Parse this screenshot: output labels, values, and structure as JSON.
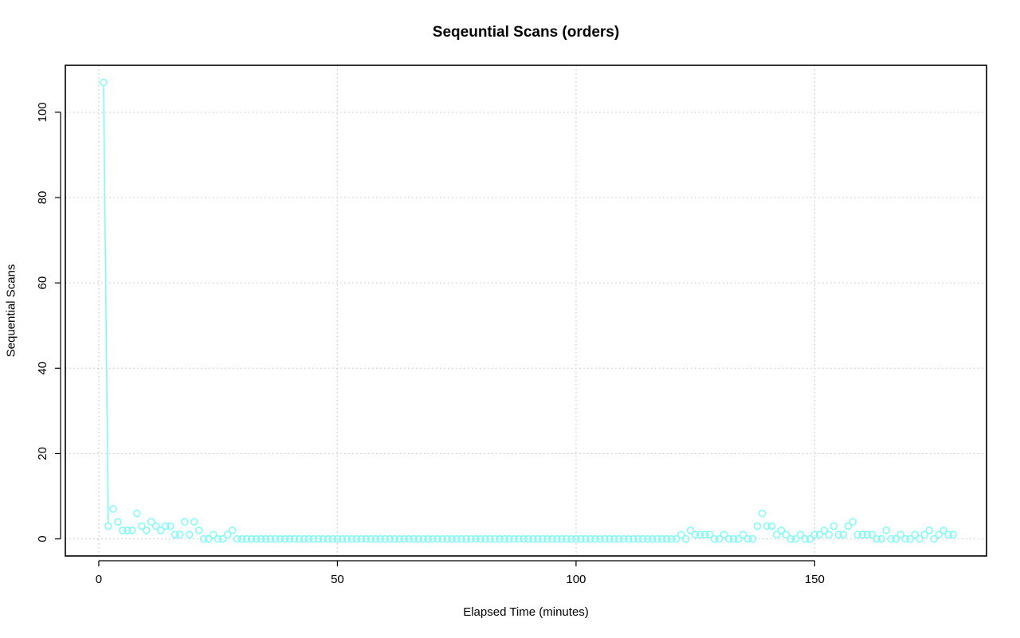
{
  "chart_data": {
    "type": "scatter",
    "title": "Seqeuntial Scans (orders)",
    "xlabel": "Elapsed Time (minutes)",
    "ylabel": "Sequential Scans",
    "xlim": [
      -7,
      186
    ],
    "ylim": [
      -4,
      111
    ],
    "xticks": [
      0,
      50,
      100,
      150
    ],
    "yticks": [
      0,
      20,
      40,
      60,
      80,
      100
    ],
    "grid": true,
    "color": "#7ffbf6",
    "series": [
      {
        "x_start": 1,
        "values": [
          107,
          3,
          7,
          4,
          2,
          2,
          2,
          6,
          3,
          2,
          4,
          3,
          2,
          3,
          3,
          1,
          1,
          4,
          1,
          4,
          2,
          0,
          0,
          1,
          0,
          0,
          1,
          2,
          0,
          0,
          0,
          0,
          0,
          0,
          0,
          0,
          0,
          0,
          0,
          0,
          0,
          0,
          0,
          0,
          0,
          0,
          0,
          0,
          0,
          0,
          0,
          0,
          0,
          0,
          0,
          0,
          0,
          0,
          0,
          0,
          0,
          0,
          0,
          0,
          0,
          0,
          0,
          0,
          0,
          0,
          0,
          0,
          0,
          0,
          0,
          0,
          0,
          0,
          0,
          0,
          0,
          0,
          0,
          0,
          0,
          0,
          0,
          0,
          0,
          0,
          0,
          0,
          0,
          0,
          0,
          0,
          0,
          0,
          0,
          0,
          0,
          0,
          0,
          0,
          0,
          0,
          0,
          0,
          0,
          0,
          0,
          0,
          0,
          0,
          0,
          0,
          0,
          0,
          0,
          0,
          0,
          1,
          0,
          2,
          1,
          1,
          1,
          1,
          0,
          0,
          1,
          0,
          0,
          0,
          1,
          0,
          0,
          3,
          6,
          3,
          3,
          1,
          2,
          1,
          0,
          0,
          1,
          0,
          0,
          1,
          1,
          2,
          1,
          3,
          1,
          1,
          3,
          4,
          1,
          1,
          1,
          1,
          0,
          0,
          2,
          0,
          0,
          1,
          0,
          0,
          1,
          0,
          1,
          2,
          0,
          1,
          2,
          1,
          1
        ]
      }
    ],
    "line_segment": [
      [
        1,
        107
      ],
      [
        2,
        3
      ]
    ]
  }
}
